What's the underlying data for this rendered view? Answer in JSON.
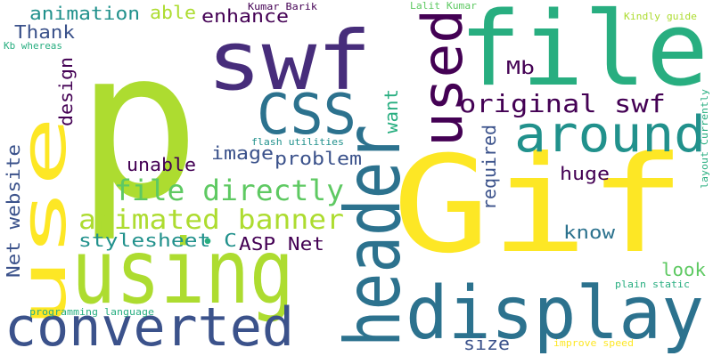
{
  "word_cloud": {
    "background": "#ffffff",
    "palette": {
      "yellow": "#fde725",
      "lime": "#addc30",
      "green": "#5ec962",
      "teal": "#28ae80",
      "cyan": "#21918c",
      "blue": "#2c728e",
      "indigo": "#3b528b",
      "violet": "#472d7b",
      "dark": "#440154"
    },
    "words": [
      {
        "id": "p",
        "text": "p",
        "color": "lime"
      },
      {
        "id": "gif",
        "text": "Gif",
        "color": "yellow"
      },
      {
        "id": "using",
        "text": "using",
        "color": "lime"
      },
      {
        "id": "swf",
        "text": "swf",
        "color": "violet"
      },
      {
        "id": "file",
        "text": "file",
        "color": "teal"
      },
      {
        "id": "use",
        "text": "use",
        "color": "yellow"
      },
      {
        "id": "header",
        "text": "header",
        "color": "blue"
      },
      {
        "id": "display",
        "text": "display",
        "color": "blue"
      },
      {
        "id": "converted",
        "text": "converted",
        "color": "indigo"
      },
      {
        "id": "css",
        "text": "CSS",
        "color": "blue"
      },
      {
        "id": "used",
        "text": "used",
        "color": "dark"
      },
      {
        "id": "around",
        "text": "around",
        "color": "cyan"
      },
      {
        "id": "original_swf",
        "text": "original swf",
        "color": "dark"
      },
      {
        "id": "file_directly",
        "text": "file directly",
        "color": "green"
      },
      {
        "id": "animated_banner",
        "text": "animated banner",
        "color": "lime"
      },
      {
        "id": "stylesheet_c",
        "text": "stylesheet C",
        "color": "cyan"
      },
      {
        "id": "dot",
        "text": "•",
        "color": "teal"
      },
      {
        "id": "asp_net",
        "text": "ASP Net",
        "color": "dark"
      },
      {
        "id": "net_website",
        "text": "Net website",
        "color": "indigo"
      },
      {
        "id": "animation",
        "text": "animation",
        "color": "cyan"
      },
      {
        "id": "able",
        "text": "able",
        "color": "lime"
      },
      {
        "id": "enhance",
        "text": "enhance",
        "color": "dark"
      },
      {
        "id": "thank",
        "text": "Thank",
        "color": "indigo"
      },
      {
        "id": "design",
        "text": "design",
        "color": "dark"
      },
      {
        "id": "image",
        "text": "image",
        "color": "indigo"
      },
      {
        "id": "unable",
        "text": "unable",
        "color": "dark"
      },
      {
        "id": "problem",
        "text": "problem",
        "color": "indigo"
      },
      {
        "id": "want",
        "text": "want",
        "color": "teal"
      },
      {
        "id": "mb",
        "text": "Mb",
        "color": "dark"
      },
      {
        "id": "huge",
        "text": "huge",
        "color": "dark"
      },
      {
        "id": "know",
        "text": "know",
        "color": "blue"
      },
      {
        "id": "required",
        "text": "required",
        "color": "indigo"
      },
      {
        "id": "look",
        "text": "look",
        "color": "green"
      },
      {
        "id": "size",
        "text": "size",
        "color": "indigo"
      },
      {
        "id": "kumar_barik",
        "text": "Kumar Barik",
        "color": "dark"
      },
      {
        "id": "lalit_kumar",
        "text": "Lalit Kumar",
        "color": "green"
      },
      {
        "id": "kindly_guide",
        "text": "Kindly guide",
        "color": "lime"
      },
      {
        "id": "kb_whereas",
        "text": "Kb whereas",
        "color": "teal"
      },
      {
        "id": "flash_utilities",
        "text": "flash utilities",
        "color": "cyan"
      },
      {
        "id": "layout_currently",
        "text": "layout Currently",
        "color": "teal"
      },
      {
        "id": "plain_static",
        "text": "plain static",
        "color": "teal"
      },
      {
        "id": "programming_language",
        "text": "programming language",
        "color": "teal"
      },
      {
        "id": "improve_speed",
        "text": "improve speed",
        "color": "yellow"
      }
    ]
  }
}
